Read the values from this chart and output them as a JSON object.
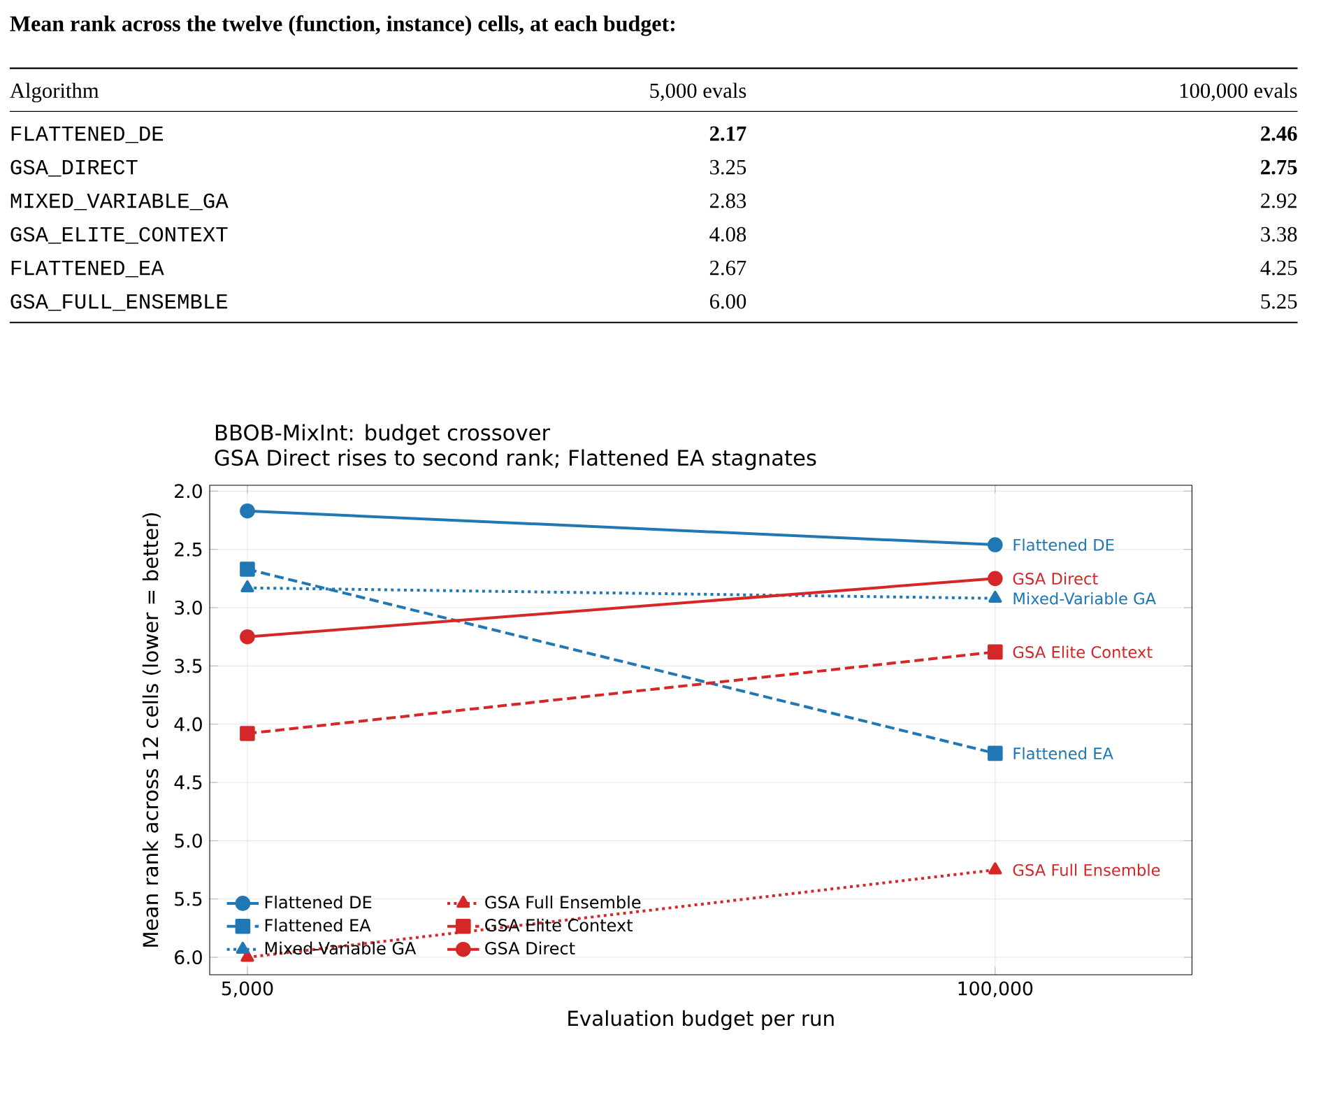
{
  "chart_data": [
    {
      "type": "other",
      "title": "Mean rank across the twelve (function, instance) cells, at each budget:",
      "xlabel": "Algorithm",
      "categories": [
        "FLATTENED_DE",
        "GSA_DIRECT",
        "MIXED_VARIABLE_GA",
        "GSA_ELITE_CONTEXT",
        "FLATTENED_EA",
        "GSA_FULL_ENSEMBLE"
      ],
      "data_labels": true,
      "series": [
        {
          "name": "5,000 evals",
          "values": [
            2.17,
            3.25,
            2.83,
            4.08,
            2.67,
            6.0
          ],
          "value_labels": [
            "**2.17**",
            "3.25",
            "2.83",
            "4.08",
            "2.67",
            "6.00"
          ]
        },
        {
          "name": "100,000 evals",
          "values": [
            2.46,
            2.75,
            2.92,
            3.38,
            4.25,
            5.25
          ],
          "value_labels": [
            "**2.46**",
            "**2.75**",
            "2.92",
            "3.38",
            "4.25",
            "5.25"
          ]
        }
      ]
    },
    {
      "type": "line",
      "title": "BBOB-MixInt: budget crossover",
      "subtitle": "GSA Direct rises to second rank; Flattened EA stagnates",
      "xlabel": "Evaluation budget per run",
      "ylabel": "Mean rank across 12 cells   (lower = better)",
      "x": [
        5000,
        100000
      ],
      "log": "x",
      "xlim": [
        4300,
        220000
      ],
      "xticks": [
        {
          "value": 5000,
          "label": "5,000"
        },
        {
          "value": 100000,
          "label": "100,000"
        }
      ],
      "ylim": [
        6.15,
        1.95
      ],
      "yticks": [
        {
          "value": 2.0,
          "label": "2.0"
        },
        {
          "value": 2.5,
          "label": "2.5"
        },
        {
          "value": 3.0,
          "label": "3.0"
        },
        {
          "value": 3.5,
          "label": "3.5"
        },
        {
          "value": 4.0,
          "label": "4.0"
        },
        {
          "value": 4.5,
          "label": "4.5"
        },
        {
          "value": 5.0,
          "label": "5.0"
        },
        {
          "value": 5.5,
          "label": "5.5"
        },
        {
          "value": 6.0,
          "label": "6.0"
        }
      ],
      "grid": true,
      "legend": "bottom left",
      "series": [
        {
          "name": "Flattened DE",
          "color": "#1f77b4",
          "marker": "circle",
          "line_style": "solid",
          "values": [
            2.17,
            2.46
          ]
        },
        {
          "name": "Flattened EA",
          "color": "#1f77b4",
          "marker": "square",
          "line_style": "dashed",
          "values": [
            2.67,
            4.25
          ]
        },
        {
          "name": "Mixed-Variable GA",
          "color": "#1f77b4",
          "marker": "triangle",
          "line_style": "dotted",
          "values": [
            2.83,
            2.92
          ]
        },
        {
          "name": "GSA Full Ensemble",
          "color": "#d62728",
          "marker": "triangle",
          "line_style": "dotted",
          "values": [
            6.0,
            5.25
          ]
        },
        {
          "name": "GSA Elite Context",
          "color": "#d62728",
          "marker": "square",
          "line_style": "dashed",
          "values": [
            4.08,
            3.38
          ]
        },
        {
          "name": "GSA Direct",
          "color": "#d62728",
          "marker": "circle",
          "line_style": "solid",
          "values": [
            3.25,
            2.75
          ]
        }
      ]
    }
  ]
}
